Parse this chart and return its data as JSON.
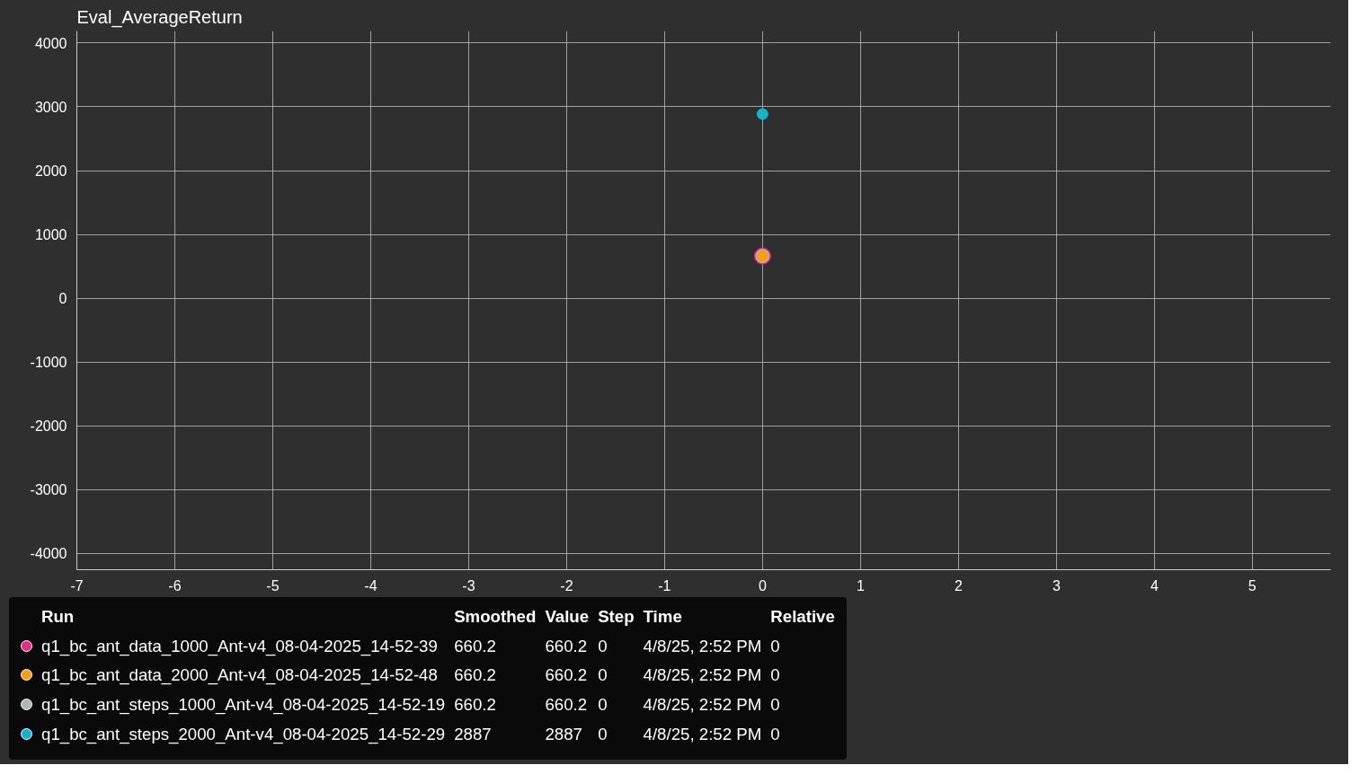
{
  "chart_data": {
    "type": "scatter",
    "title": "Eval_AverageReturn",
    "x": [
      0
    ],
    "series": [
      {
        "name": "q1_bc_ant_data_1000_Ant-v4_08-04-2025_14-52-39",
        "color": "#e7298a",
        "values": [
          660.2
        ]
      },
      {
        "name": "q1_bc_ant_data_2000_Ant-v4_08-04-2025_14-52-48",
        "color": "#f5a00f",
        "values": [
          660.2
        ]
      },
      {
        "name": "q1_bc_ant_steps_1000_Ant-v4_08-04-2025_14-52-19",
        "color": "#b4b4b4",
        "values": [
          660.2
        ]
      },
      {
        "name": "q1_bc_ant_steps_2000_Ant-v4_08-04-2025_14-52-29",
        "color": "#12b5cb",
        "values": [
          2887
        ]
      }
    ],
    "xlim": [
      -7,
      5.8
    ],
    "xticks": [
      -7,
      -6,
      -5,
      -4,
      -3,
      -2,
      -1,
      0,
      1,
      2,
      3,
      4,
      5
    ],
    "ylim": [
      -4260,
      4190
    ],
    "yticks": [
      -4000,
      -3000,
      -2000,
      -1000,
      0,
      1000,
      2000,
      3000,
      4000
    ],
    "grid": true,
    "marker": "circle",
    "legend": "bottom left",
    "annotations": [
      "Run",
      "Smoothed",
      "Value",
      "Step",
      "Time",
      "Relative",
      "660.2",
      "660.2",
      "4/8/25, 2:52 PM",
      "0",
      "660.2",
      "660.2",
      "4/8/25, 2:52 PM",
      "0",
      "660.2",
      "660.2",
      "4/8/25, 2:52 PM",
      "0",
      "2887",
      "2887",
      "4/8/25, 2:52 PM",
      "0"
    ]
  }
}
